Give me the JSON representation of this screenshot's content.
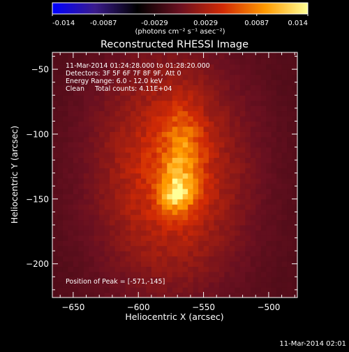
{
  "chart_data": {
    "type": "heatmap",
    "title": "Reconstructed RHESSI Image",
    "xlabel": "Heliocentric X (arcsec)",
    "ylabel": "Heliocentric Y (arcsec)",
    "xlim": [
      -666,
      -478
    ],
    "ylim": [
      -226,
      -37
    ],
    "xticks": [
      -650,
      -600,
      -550,
      -500
    ],
    "yticks": [
      -50,
      -100,
      -150,
      -200
    ],
    "colorbar": {
      "label": "(photons cm⁻² s⁻¹ asec⁻²)",
      "ticks": [
        "-0.014",
        "-0.0087",
        "-0.0029",
        "0.0029",
        "0.0087",
        "0.014"
      ],
      "range": [
        -0.014,
        0.014
      ],
      "colormap_stops": [
        "#0000ff",
        "#3a1b8c",
        "#000000",
        "#6a1020",
        "#d12a05",
        "#ff9a00",
        "#ffff96"
      ]
    },
    "annotations": [
      "11-Mar-2014 01:24:28.000 to 01:28:20.000",
      "Detectors: 3F 5F 6F 7F 8F 9F, Att 0",
      "Energy Range: 6.0 - 12.0 keV",
      "Clean     Total counts: 4.11E+04",
      "Position of Peak = [-571,-145]"
    ],
    "peak": {
      "x": -571,
      "y": -145,
      "value": 0.014
    },
    "source_shape": {
      "components": [
        {
          "x": -571,
          "y": -145,
          "sigma_x": 9,
          "sigma_y": 11,
          "amp": 0.0062
        },
        {
          "x": -566,
          "y": -115,
          "sigma_x": 11,
          "sigma_y": 26,
          "amp": 0.0045
        },
        {
          "x": -575,
          "y": -130,
          "sigma_x": 38,
          "sigma_y": 58,
          "amp": 0.0062
        }
      ],
      "background_value": -0.0011,
      "pixel_size_arcsec": 4
    }
  },
  "footer": {
    "timestamp": "11-Mar-2014 02:01"
  }
}
